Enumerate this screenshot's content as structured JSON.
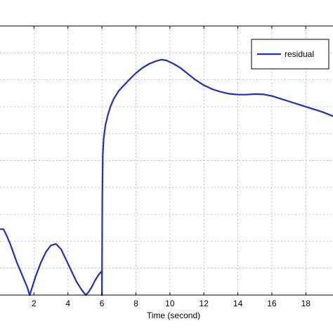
{
  "chart_data": {
    "type": "line",
    "xlabel": "Time (second)",
    "ylabel": "",
    "title": "",
    "xlim": [
      0,
      19.6
    ],
    "ylim": [
      0,
      1
    ],
    "x_ticks": [
      2,
      4,
      6,
      8,
      10,
      12,
      14,
      16,
      18
    ],
    "x_tick_labels": [
      "2",
      "4",
      "6",
      "8",
      "10",
      "12",
      "14",
      "16",
      "18"
    ],
    "grid": true,
    "legend": {
      "placement": "top-right",
      "entries": [
        "residual"
      ]
    },
    "series": [
      {
        "name": "residual",
        "color": "#1f2fbf",
        "x": [
          0,
          0.2,
          0.4,
          0.6,
          0.8,
          1.0,
          1.2,
          1.4,
          1.6,
          1.75,
          1.9,
          2.1,
          2.4,
          2.7,
          3.0,
          3.3,
          3.6,
          3.9,
          4.2,
          4.5,
          4.8,
          5.05,
          5.2,
          5.4,
          5.6,
          5.8,
          5.999,
          6.0,
          6.02,
          6.05,
          6.1,
          6.2,
          6.35,
          6.5,
          6.7,
          7.0,
          7.3,
          7.6,
          8.0,
          8.4,
          8.8,
          9.2,
          9.5,
          9.8,
          10.2,
          10.6,
          11.0,
          11.5,
          12.0,
          12.5,
          13.0,
          13.5,
          14.0,
          14.5,
          15.0,
          15.5,
          16.0,
          16.5,
          17.0,
          17.5,
          18.0,
          18.5,
          19.0,
          19.6
        ],
        "y": [
          0.245,
          0.245,
          0.22,
          0.19,
          0.155,
          0.12,
          0.09,
          0.06,
          0.03,
          0.0,
          0.03,
          0.07,
          0.12,
          0.16,
          0.185,
          0.19,
          0.17,
          0.13,
          0.09,
          0.05,
          0.02,
          0.0,
          0.01,
          0.03,
          0.055,
          0.075,
          0.09,
          0.0,
          0.35,
          0.52,
          0.58,
          0.63,
          0.67,
          0.7,
          0.73,
          0.76,
          0.78,
          0.8,
          0.825,
          0.845,
          0.86,
          0.87,
          0.875,
          0.872,
          0.86,
          0.845,
          0.825,
          0.8,
          0.78,
          0.765,
          0.755,
          0.748,
          0.745,
          0.745,
          0.747,
          0.746,
          0.74,
          0.73,
          0.72,
          0.71,
          0.7,
          0.69,
          0.68,
          0.665
        ]
      }
    ]
  }
}
